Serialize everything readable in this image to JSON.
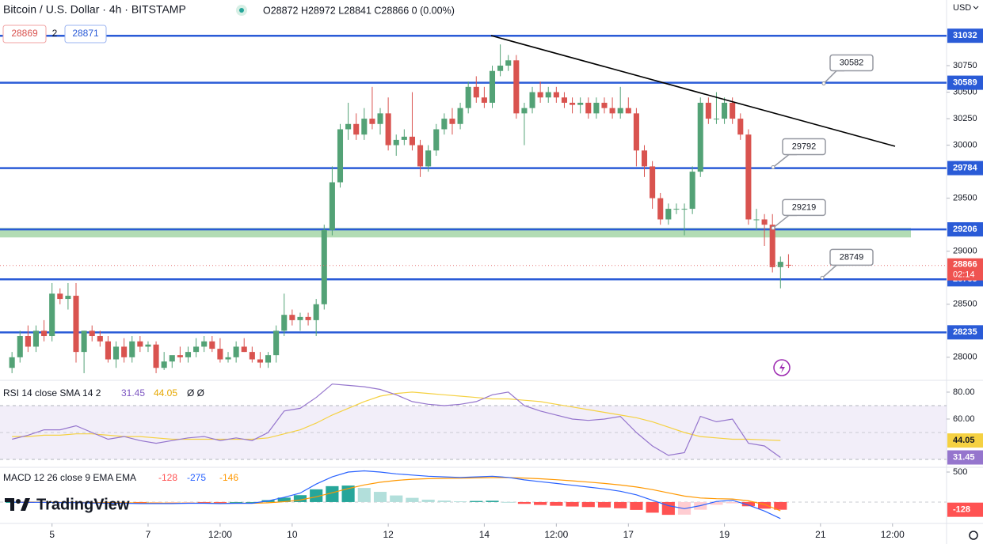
{
  "chart_data": {
    "type": "candlestick",
    "title": "Bitcoin / U.S. Dollar · 4h · BITSTAMP",
    "ohlc_text": "O28872 H28972 L28841 C28866 0 (0.00%)",
    "bid": "28869",
    "spread": "2",
    "ask": "28871",
    "currency": "USD",
    "last_price_timer": "02:14",
    "up_color": "#53a276",
    "down_color": "#d9534f",
    "level_color": "#2a5bd7",
    "xlim": [
      -26,
      447
    ],
    "xticks": [
      {
        "value": 0,
        "label": "5"
      },
      {
        "value": 48,
        "label": "7"
      },
      {
        "value": 84,
        "label": "12:00"
      },
      {
        "value": 120,
        "label": "10"
      },
      {
        "value": 168,
        "label": "12"
      },
      {
        "value": 216,
        "label": "14"
      },
      {
        "value": 252,
        "label": "12:00"
      },
      {
        "value": 288,
        "label": "17"
      },
      {
        "value": 336,
        "label": "19"
      },
      {
        "value": 384,
        "label": "21"
      },
      {
        "value": 420,
        "label": "12:00"
      }
    ],
    "ylim": [
      27790,
      31369
    ],
    "yticks": [
      28000,
      28500,
      29000,
      29500,
      30000,
      30250,
      30500,
      30750
    ],
    "x": [
      -20,
      -16,
      -12,
      -8,
      -4,
      0,
      4,
      8,
      12,
      16,
      20,
      24,
      28,
      32,
      36,
      40,
      44,
      48,
      52,
      56,
      60,
      64,
      68,
      72,
      76,
      80,
      84,
      88,
      92,
      96,
      100,
      104,
      108,
      112,
      116,
      120,
      124,
      128,
      132,
      136,
      140,
      144,
      148,
      152,
      156,
      160,
      164,
      168,
      172,
      176,
      180,
      184,
      188,
      192,
      196,
      200,
      204,
      208,
      212,
      216,
      220,
      224,
      228,
      232,
      236,
      240,
      244,
      248,
      252,
      256,
      260,
      264,
      268,
      272,
      276,
      280,
      284,
      288,
      292,
      296,
      300,
      304,
      308,
      312,
      316,
      320,
      324,
      328,
      332,
      336,
      340,
      344,
      348,
      352,
      356,
      360,
      364,
      368
    ],
    "candles": [
      [
        27900,
        28050,
        27850,
        28000
      ],
      [
        28000,
        28250,
        27950,
        28200
      ],
      [
        28200,
        28300,
        28050,
        28100
      ],
      [
        28100,
        28300,
        28050,
        28250
      ],
      [
        28250,
        28350,
        28150,
        28200
      ],
      [
        28200,
        28700,
        28150,
        28600
      ],
      [
        28600,
        28650,
        28500,
        28550
      ],
      [
        28550,
        28700,
        28450,
        28580
      ],
      [
        28580,
        28700,
        27950,
        28050
      ],
      [
        28050,
        28250,
        27850,
        28250
      ],
      [
        28250,
        28300,
        28150,
        28200
      ],
      [
        28200,
        28250,
        28100,
        28150
      ],
      [
        28150,
        28200,
        27950,
        27980
      ],
      [
        27980,
        28150,
        27900,
        28100
      ],
      [
        28100,
        28180,
        27950,
        28000
      ],
      [
        28000,
        28200,
        27950,
        28150
      ],
      [
        28150,
        28200,
        28050,
        28100
      ],
      [
        28100,
        28150,
        28050,
        28120
      ],
      [
        28120,
        28150,
        27850,
        27900
      ],
      [
        27900,
        28050,
        27880,
        27960
      ],
      [
        27960,
        28000,
        27900,
        28020
      ],
      [
        28020,
        28100,
        27950,
        28000
      ],
      [
        28000,
        28100,
        27950,
        28050
      ],
      [
        28050,
        28180,
        28000,
        28100
      ],
      [
        28100,
        28200,
        28050,
        28150
      ],
      [
        28150,
        28200,
        28050,
        28080
      ],
      [
        28080,
        28180,
        27950,
        27980
      ],
      [
        27980,
        28050,
        27950,
        28000
      ],
      [
        28000,
        28150,
        27950,
        28100
      ],
      [
        28100,
        28180,
        28050,
        28050
      ],
      [
        28050,
        28100,
        27950,
        27980
      ],
      [
        27980,
        28050,
        27900,
        27950
      ],
      [
        27950,
        28050,
        27900,
        28020
      ],
      [
        28020,
        28300,
        27950,
        28250
      ],
      [
        28250,
        28600,
        28200,
        28400
      ],
      [
        28400,
        28450,
        28300,
        28350
      ],
      [
        28350,
        28420,
        28250,
        28380
      ],
      [
        28380,
        28420,
        28300,
        28350
      ],
      [
        28350,
        28550,
        28200,
        28500
      ],
      [
        28500,
        29250,
        28450,
        29200
      ],
      [
        29200,
        29800,
        29150,
        29650
      ],
      [
        29650,
        30200,
        29600,
        30150
      ],
      [
        30150,
        30400,
        30050,
        30200
      ],
      [
        30200,
        30300,
        30050,
        30100
      ],
      [
        30100,
        30350,
        30050,
        30250
      ],
      [
        30250,
        30550,
        30150,
        30200
      ],
      [
        30200,
        30350,
        30100,
        30300
      ],
      [
        30300,
        30450,
        29950,
        30000
      ],
      [
        30000,
        30100,
        29900,
        30050
      ],
      [
        30050,
        30150,
        30000,
        30080
      ],
      [
        30080,
        30500,
        29950,
        30000
      ],
      [
        30000,
        30050,
        29700,
        29800
      ],
      [
        29800,
        30000,
        29750,
        29950
      ],
      [
        29950,
        30200,
        29900,
        30150
      ],
      [
        30150,
        30300,
        30100,
        30250
      ],
      [
        30250,
        30350,
        30100,
        30200
      ],
      [
        30200,
        30400,
        30150,
        30350
      ],
      [
        30350,
        30600,
        30300,
        30550
      ],
      [
        30550,
        30650,
        30400,
        30450
      ],
      [
        30450,
        30550,
        30350,
        30400
      ],
      [
        30400,
        30750,
        30350,
        30700
      ],
      [
        30700,
        30950,
        30650,
        30750
      ],
      [
        30750,
        30850,
        30700,
        30800
      ],
      [
        30800,
        30850,
        30250,
        30300
      ],
      [
        30300,
        30400,
        30000,
        30350
      ],
      [
        30350,
        30550,
        30300,
        30500
      ],
      [
        30500,
        30600,
        30400,
        30450
      ],
      [
        30450,
        30550,
        30400,
        30500
      ],
      [
        30500,
        30550,
        30400,
        30450
      ],
      [
        30450,
        30500,
        30350,
        30400
      ],
      [
        30400,
        30450,
        30300,
        30380
      ],
      [
        30380,
        30450,
        30300,
        30400
      ],
      [
        30400,
        30450,
        30250,
        30300
      ],
      [
        30300,
        30450,
        30250,
        30400
      ],
      [
        30400,
        30450,
        30300,
        30350
      ],
      [
        30350,
        30450,
        30250,
        30300
      ],
      [
        30300,
        30550,
        30250,
        30350
      ],
      [
        30350,
        30450,
        30300,
        30300
      ],
      [
        30300,
        30350,
        29800,
        29950
      ],
      [
        29950,
        30000,
        29700,
        29800
      ],
      [
        29800,
        29850,
        29400,
        29500
      ],
      [
        29500,
        29550,
        29250,
        29300
      ],
      [
        29300,
        29450,
        29250,
        29400
      ],
      [
        29400,
        29450,
        29350,
        29400
      ],
      [
        29400,
        29450,
        29150,
        29400
      ],
      [
        29400,
        29800,
        29350,
        29750
      ],
      [
        29750,
        30450,
        29700,
        30400
      ],
      [
        30400,
        30450,
        30200,
        30250
      ],
      [
        30250,
        30500,
        30200,
        30250
      ],
      [
        30250,
        30450,
        30200,
        30400
      ],
      [
        30400,
        30450,
        30200,
        30250
      ],
      [
        30250,
        30300,
        30050,
        30100
      ],
      [
        30100,
        30150,
        29250,
        29300
      ],
      [
        29300,
        29400,
        29200,
        29300
      ],
      [
        29300,
        29350,
        29050,
        29250
      ],
      [
        29250,
        29350,
        28800,
        28850
      ],
      [
        28850,
        28950,
        28650,
        28900
      ],
      [
        28872,
        28972,
        28841,
        28866
      ]
    ],
    "levels": [
      31032,
      30589,
      29784,
      29206,
      28735,
      28235
    ],
    "zone": [
      29130,
      29220
    ],
    "zone_color": "#a5d6a7",
    "callouts": [
      30582,
      29792,
      29219,
      28749
    ],
    "rsi": {
      "label": "RSI 14 close SMA 14 2",
      "extra": "Ø Ø",
      "color": "#9575cd",
      "sma_color": "#f5d142",
      "ylim": [
        24.7,
        88.2
      ],
      "yticks": [
        {
          "value": 80,
          "label": "80.00"
        },
        {
          "value": 60,
          "label": "60.00"
        }
      ],
      "band": [
        30,
        70
      ],
      "x": [
        -20,
        -12,
        -4,
        4,
        12,
        20,
        28,
        36,
        44,
        52,
        60,
        68,
        76,
        84,
        92,
        100,
        108,
        116,
        124,
        132,
        140,
        148,
        156,
        164,
        172,
        180,
        188,
        196,
        204,
        212,
        220,
        228,
        236,
        244,
        252,
        260,
        268,
        276,
        284,
        292,
        300,
        308,
        316,
        324,
        332,
        340,
        348,
        356,
        364
      ],
      "values": [
        45,
        48,
        52,
        52,
        55,
        50,
        45,
        47,
        44,
        42,
        44,
        46,
        47,
        44,
        46,
        44,
        50,
        66,
        68,
        76,
        86,
        85,
        84,
        82,
        78,
        73,
        71,
        70,
        71,
        73,
        78,
        80,
        70,
        66,
        63,
        60,
        59,
        60,
        62,
        50,
        40,
        33,
        35,
        62,
        58,
        60,
        42,
        40,
        31.45
      ],
      "sma": [
        47,
        47,
        48,
        48,
        49,
        49,
        48,
        47,
        47,
        46,
        45,
        45,
        45,
        45,
        45,
        45,
        46,
        49,
        52,
        57,
        63,
        68,
        73,
        77,
        79,
        80,
        79,
        78,
        77,
        76,
        75,
        75,
        74,
        73,
        71,
        69,
        67,
        65,
        63,
        61,
        58,
        54,
        50,
        47,
        46,
        45,
        45,
        44.5,
        44.05
      ]
    },
    "macd": {
      "label": "MACD 12 26 close 9 EMA EMA",
      "macd_color": "#2962ff",
      "signal_color": "#ff9800",
      "hist_colors": [
        "#26a69a",
        "#b2dfdb",
        "#ff5252",
        "#ffcdd2"
      ],
      "ylim": [
        -330,
        566
      ],
      "yticks": [
        500
      ],
      "x": [
        -20,
        -12,
        -4,
        4,
        12,
        20,
        28,
        36,
        44,
        52,
        60,
        68,
        76,
        84,
        92,
        100,
        108,
        116,
        124,
        132,
        140,
        148,
        156,
        164,
        172,
        180,
        188,
        196,
        204,
        212,
        220,
        228,
        236,
        244,
        252,
        260,
        268,
        276,
        284,
        292,
        300,
        308,
        316,
        324,
        332,
        340,
        348,
        356,
        364
      ],
      "hist": [
        0,
        -5,
        -3,
        -6,
        -4,
        -7,
        -10,
        -8,
        -10,
        -8,
        -6,
        -1,
        -1,
        -5,
        0,
        0,
        32,
        74,
        115,
        212,
        265,
        275,
        235,
        170,
        110,
        70,
        40,
        25,
        12,
        18,
        22,
        2,
        -30,
        -48,
        -62,
        -74,
        -83,
        -90,
        -104,
        -131,
        -177,
        -213,
        -210,
        -128,
        -46,
        -21,
        -70,
        -110,
        -128
      ],
      "macd": [
        0,
        -5,
        -5,
        -10,
        -10,
        -15,
        -20,
        -20,
        -25,
        -25,
        -25,
        -20,
        -20,
        -25,
        -20,
        -20,
        20,
        80,
        150,
        300,
        420,
        500,
        520,
        500,
        470,
        450,
        430,
        420,
        410,
        420,
        430,
        410,
        370,
        340,
        310,
        280,
        250,
        220,
        180,
        120,
        30,
        -60,
        -110,
        -60,
        10,
        30,
        -50,
        -150,
        -275
      ],
      "signal": [
        0,
        0,
        -2,
        -4,
        -6,
        -8,
        -10,
        -12,
        -15,
        -17,
        -19,
        -19,
        -19,
        -20,
        -20,
        -20,
        -12,
        6,
        35,
        88,
        155,
        225,
        285,
        330,
        360,
        380,
        390,
        395,
        398,
        402,
        408,
        408,
        400,
        388,
        372,
        354,
        333,
        310,
        284,
        251,
        207,
        153,
        100,
        68,
        56,
        51,
        20,
        -40,
        -146
      ]
    },
    "brand": "TradingView"
  }
}
